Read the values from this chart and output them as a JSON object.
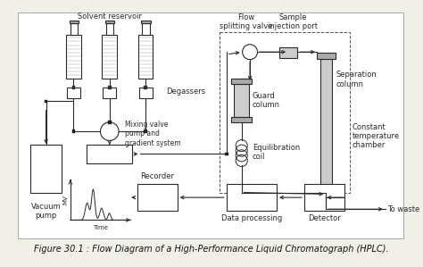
{
  "title": "Figure 30.1 : Flow Diagram of a High-Performance Liquid Chromatograph (HPLC).",
  "title_fontsize": 7.0,
  "bg_color": "#f0efe8",
  "line_color": "#2a2a2a",
  "labels": {
    "solvent_reservoir": "Solvent reservoir",
    "degassers": "Degassers",
    "flow_splitting_valve": "Flow\nsplitting valve",
    "sample_injection_port": "Sample\ninjection port",
    "mixing_valve": "Mixing valve\npump and\ngradient system",
    "guard_column": "Guard\ncolumn",
    "equilibration_coil": "Equilibration\ncoil",
    "separation_column": "Separation\ncolumn",
    "constant_temp": "Constant\ntemperature\nchamber",
    "to_waste": "To waste",
    "vacuum_pump": "Vacuum\npump",
    "recorder": "Recorder",
    "data_processing": "Data processing",
    "detector": "Detector",
    "mv_label": "MV",
    "time_label": "Time"
  },
  "font_size": 6.0,
  "lw": 0.8
}
